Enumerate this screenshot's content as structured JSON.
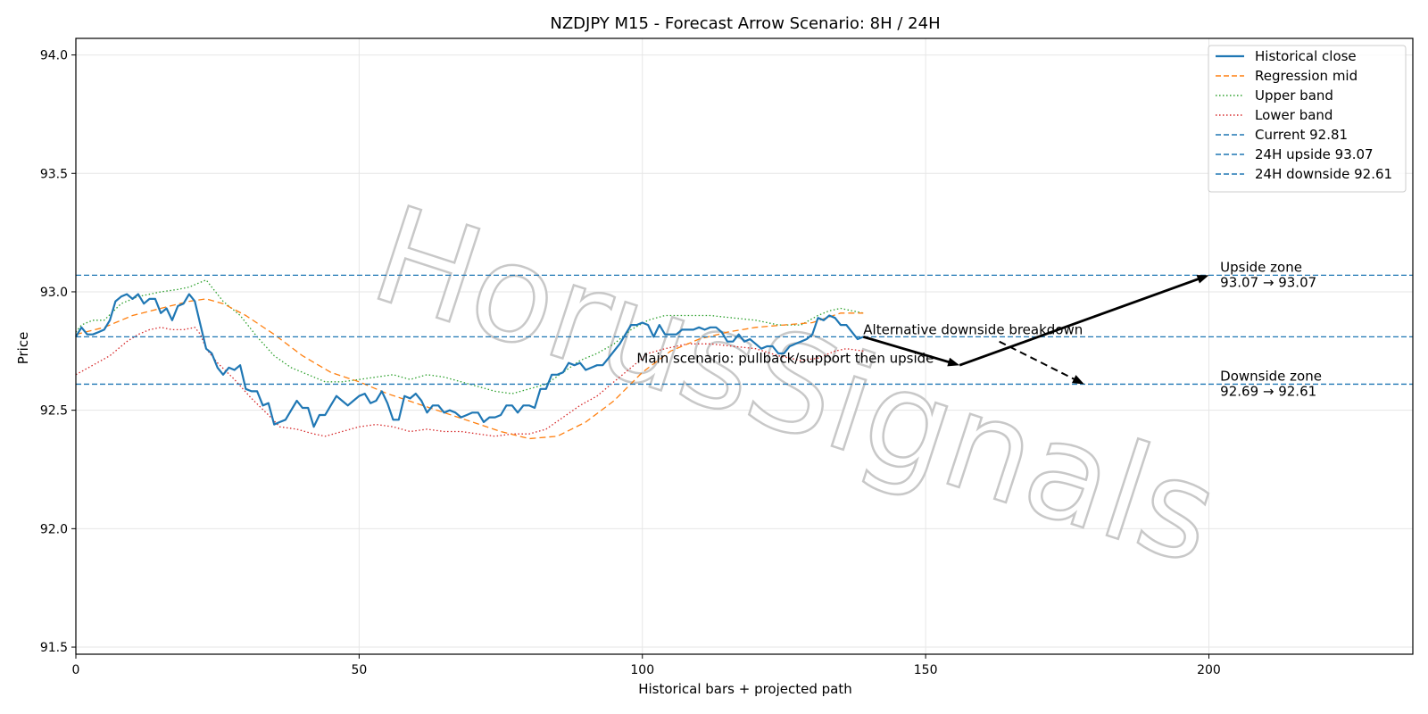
{
  "chart_data": {
    "type": "line",
    "title": "NZDJPY M15 - Forecast Arrow Scenario: 8H / 24H",
    "xlabel": "Historical bars + projected path",
    "ylabel": "Price",
    "xlim": [
      0,
      236
    ],
    "ylim": [
      91.47,
      94.07
    ],
    "xticks": [
      0,
      50,
      100,
      150,
      200
    ],
    "yticks": [
      91.5,
      92.0,
      92.5,
      93.0,
      93.5,
      94.0
    ],
    "grid": true,
    "legend_position": "top-right",
    "series": [
      {
        "name": "Historical close",
        "key": "close",
        "color": "#1f77b4",
        "style": "solid",
        "x": [
          0,
          1,
          2,
          3,
          4,
          5,
          6,
          7,
          8,
          9,
          10,
          11,
          12,
          13,
          14,
          15,
          16,
          17,
          18,
          19,
          20,
          21,
          22,
          23,
          24,
          25,
          26,
          27,
          28,
          29,
          30,
          31,
          32,
          33,
          34,
          35,
          36,
          37,
          38,
          39,
          40,
          41,
          42,
          43,
          44,
          45,
          46,
          47,
          48,
          49,
          50,
          51,
          52,
          53,
          54,
          55,
          56,
          57,
          58,
          59,
          60,
          61,
          62,
          63,
          64,
          65,
          66,
          67,
          68,
          69,
          70,
          71,
          72,
          73,
          74,
          75,
          76,
          77,
          78,
          79,
          80,
          81,
          82,
          83,
          84,
          85,
          86,
          87,
          88,
          89,
          90,
          91,
          92,
          93,
          94,
          95,
          96,
          97,
          98,
          99,
          100,
          101,
          102,
          103,
          104,
          105,
          106,
          107,
          108,
          109,
          110,
          111,
          112,
          113,
          114,
          115,
          116,
          117,
          118,
          119,
          120,
          121,
          122,
          123,
          124,
          125,
          126,
          127,
          128,
          129,
          130,
          131,
          132,
          133,
          134,
          135,
          136,
          137,
          138,
          139
        ],
        "values": [
          92.81,
          92.85,
          92.82,
          92.82,
          92.83,
          92.84,
          92.88,
          92.96,
          92.98,
          92.99,
          92.97,
          92.99,
          92.95,
          92.97,
          92.97,
          92.91,
          92.93,
          92.88,
          92.94,
          92.95,
          92.99,
          92.96,
          92.86,
          92.76,
          92.74,
          92.68,
          92.65,
          92.68,
          92.67,
          92.69,
          92.59,
          92.58,
          92.58,
          92.52,
          92.53,
          92.44,
          92.45,
          92.46,
          92.5,
          92.54,
          92.51,
          92.51,
          92.43,
          92.48,
          92.48,
          92.52,
          92.56,
          92.54,
          92.52,
          92.54,
          92.56,
          92.57,
          92.53,
          92.54,
          92.58,
          92.53,
          92.46,
          92.46,
          92.56,
          92.55,
          92.57,
          92.54,
          92.49,
          92.52,
          92.52,
          92.49,
          92.5,
          92.49,
          92.47,
          92.48,
          92.49,
          92.49,
          92.45,
          92.47,
          92.47,
          92.48,
          92.52,
          92.52,
          92.49,
          92.52,
          92.52,
          92.51,
          92.59,
          92.59,
          92.65,
          92.65,
          92.66,
          92.7,
          92.69,
          92.7,
          92.67,
          92.68,
          92.69,
          92.69,
          92.72,
          92.75,
          92.78,
          92.82,
          92.86,
          92.86,
          92.87,
          92.86,
          92.81,
          92.86,
          92.82,
          92.82,
          92.82,
          92.84,
          92.84,
          92.84,
          92.85,
          92.84,
          92.85,
          92.85,
          92.83,
          92.79,
          92.79,
          92.82,
          92.79,
          92.8,
          92.78,
          92.76,
          92.77,
          92.77,
          92.74,
          92.74,
          92.77,
          92.78,
          92.79,
          92.8,
          92.82,
          92.89,
          92.88,
          92.9,
          92.89,
          92.86,
          92.86,
          92.83,
          92.8,
          92.81
        ]
      },
      {
        "name": "Regression mid",
        "key": "mid",
        "color": "#ff7f0e",
        "style": "dashed",
        "x": [
          0,
          5,
          10,
          15,
          20,
          23,
          26,
          30,
          35,
          40,
          45,
          50,
          55,
          60,
          65,
          70,
          75,
          80,
          85,
          90,
          95,
          100,
          105,
          110,
          115,
          120,
          125,
          130,
          135,
          139
        ],
        "values": [
          92.82,
          92.85,
          92.9,
          92.93,
          92.96,
          92.97,
          92.95,
          92.9,
          92.82,
          92.73,
          92.66,
          92.62,
          92.57,
          92.53,
          92.49,
          92.45,
          92.41,
          92.38,
          92.39,
          92.45,
          92.54,
          92.66,
          92.75,
          92.8,
          92.83,
          92.85,
          92.86,
          92.87,
          92.91,
          92.91
        ]
      },
      {
        "name": "Upper band",
        "key": "upper",
        "color": "#2ca02c",
        "style": "dotted",
        "x": [
          0,
          1,
          3,
          5,
          8,
          11,
          15,
          18,
          20,
          22,
          23,
          24,
          26,
          29,
          32,
          35,
          38,
          41,
          44,
          47,
          50,
          53,
          56,
          59,
          62,
          65,
          68,
          71,
          74,
          77,
          80,
          83,
          86,
          89,
          92,
          95,
          98,
          101,
          104,
          108,
          112,
          116,
          120,
          124,
          128,
          131,
          133,
          135,
          137,
          139
        ],
        "values": [
          92.83,
          92.86,
          92.88,
          92.88,
          92.95,
          92.98,
          93.0,
          93.01,
          93.02,
          93.04,
          93.05,
          93.02,
          92.96,
          92.9,
          92.81,
          92.73,
          92.68,
          92.65,
          92.62,
          92.62,
          92.63,
          92.64,
          92.65,
          92.63,
          92.65,
          92.64,
          92.62,
          92.6,
          92.58,
          92.57,
          92.59,
          92.61,
          92.66,
          92.71,
          92.74,
          92.78,
          92.84,
          92.88,
          92.9,
          92.9,
          92.9,
          92.89,
          92.88,
          92.86,
          92.86,
          92.9,
          92.92,
          92.93,
          92.92,
          92.91
        ]
      },
      {
        "name": "Lower band",
        "key": "lower",
        "color": "#d62728",
        "style": "dotted",
        "x": [
          0,
          3,
          6,
          9,
          11,
          13,
          15,
          17,
          19,
          21,
          22,
          23,
          25,
          28,
          31,
          34,
          36,
          39,
          42,
          44,
          47,
          50,
          53,
          56,
          59,
          62,
          65,
          68,
          71,
          74,
          77,
          80,
          83,
          86,
          89,
          92,
          95,
          98,
          101,
          104,
          108,
          112,
          116,
          120,
          124,
          128,
          131,
          134,
          136,
          139
        ],
        "values": [
          92.65,
          92.69,
          92.73,
          92.79,
          92.82,
          92.84,
          92.85,
          92.84,
          92.84,
          92.85,
          92.82,
          92.76,
          92.7,
          92.63,
          92.55,
          92.48,
          92.43,
          92.42,
          92.4,
          92.39,
          92.41,
          92.43,
          92.44,
          92.43,
          92.41,
          92.42,
          92.41,
          92.41,
          92.4,
          92.39,
          92.4,
          92.4,
          92.42,
          92.47,
          92.52,
          92.56,
          92.62,
          92.68,
          92.74,
          92.76,
          92.78,
          92.78,
          92.77,
          92.76,
          92.73,
          92.71,
          92.72,
          92.75,
          92.76,
          92.75
        ]
      }
    ],
    "hlines": [
      {
        "name": "Current 92.81",
        "key": "current",
        "y": 92.81,
        "color": "#1f77b4",
        "style": "dashed"
      },
      {
        "name": "24H upside 93.07",
        "key": "upside",
        "y": 93.07,
        "color": "#1f77b4",
        "style": "dashed"
      },
      {
        "name": "24H downside 92.61",
        "key": "downside",
        "y": 92.61,
        "color": "#1f77b4",
        "style": "dashed"
      }
    ],
    "arrows": [
      {
        "key": "main-leg-1",
        "from": [
          139,
          92.81
        ],
        "to": [
          156,
          92.69
        ],
        "style": "solid"
      },
      {
        "key": "main-leg-2",
        "from": [
          156,
          92.69
        ],
        "to": [
          200,
          93.07
        ],
        "style": "solid"
      },
      {
        "key": "alt-down",
        "from": [
          163,
          92.79
        ],
        "to": [
          178,
          92.61
        ],
        "style": "dashed"
      }
    ],
    "annotations": [
      {
        "key": "main-scenario",
        "text": "Main scenario: pullback/support then upside",
        "x": 99,
        "y": 92.7
      },
      {
        "key": "alt-scenario",
        "text": "Alternative downside breakdown",
        "x": 139,
        "y": 92.82
      },
      {
        "key": "upside-zone",
        "text": "Upside zone",
        "text2": "93.07 → 93.07",
        "x": 202,
        "y": 93.07
      },
      {
        "key": "downside-zone",
        "text": "Downside zone",
        "text2": "92.69 → 92.61",
        "x": 202,
        "y": 92.61
      }
    ],
    "watermark": "HorusSignals"
  }
}
